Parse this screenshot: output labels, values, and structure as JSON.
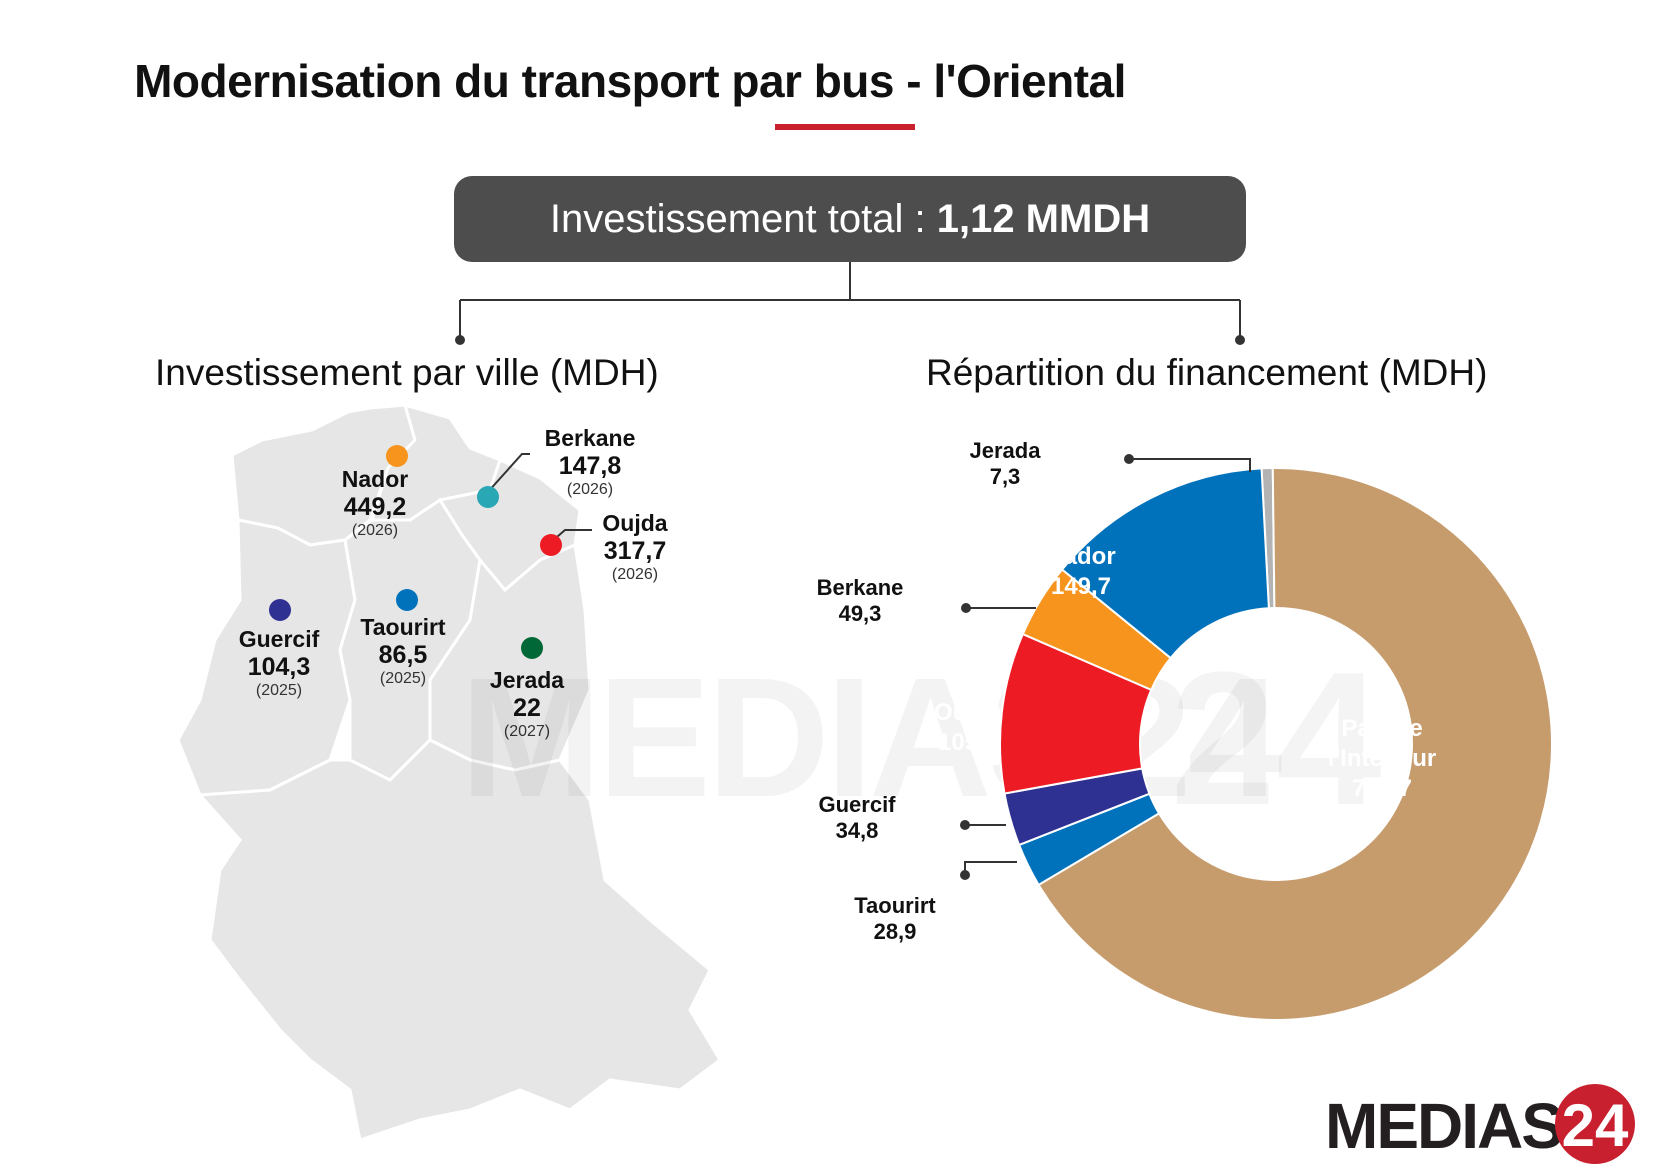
{
  "title": "Modernisation du transport par bus - l'Oriental",
  "total": {
    "label": "Investissement total : ",
    "value": "1,12 MMDH"
  },
  "map_section": {
    "title": "Investissement par ville",
    "unit": " (MDH)",
    "cities": [
      {
        "key": "nador",
        "name": "Nador",
        "value": "449,2",
        "year": "(2026)",
        "color": "#F7941D"
      },
      {
        "key": "berkane",
        "name": "Berkane",
        "value": "147,8",
        "year": "(2026)",
        "color": "#2AA7B5"
      },
      {
        "key": "oujda",
        "name": "Oujda",
        "value": "317,7",
        "year": "(2026)",
        "color": "#ED1C24"
      },
      {
        "key": "guercif",
        "name": "Guercif",
        "value": "104,3",
        "year": "(2025)",
        "color": "#2E3192"
      },
      {
        "key": "taourirt",
        "name": "Taourirt",
        "value": "86,5",
        "year": "(2025)",
        "color": "#0072BC"
      },
      {
        "key": "jerada",
        "name": "Jerada",
        "value": "22",
        "year": "(2027)",
        "color": "#006837"
      }
    ]
  },
  "donut_section": {
    "title": "Répartition du financement",
    "unit": " (MDH)"
  },
  "chart_data": [
    {
      "type": "bar",
      "title": "Investissement par ville (MDH)",
      "categories": [
        "Nador",
        "Berkane",
        "Oujda",
        "Guercif",
        "Taourirt",
        "Jerada"
      ],
      "values": [
        449.2,
        147.8,
        317.7,
        104.3,
        86.5,
        22
      ],
      "years": [
        "2026",
        "2026",
        "2026",
        "2025",
        "2025",
        "2027"
      ]
    },
    {
      "type": "pie",
      "title": "Répartition du financement (MDH)",
      "slices": [
        {
          "label": "Jerada",
          "name_lines": [
            "Jerada"
          ],
          "display": "7,3",
          "value": 7.3,
          "color": "#B3B3B3",
          "label_pos": "outside"
        },
        {
          "label": "Part de l'Intérieur",
          "name_lines": [
            "Part de",
            "l'Intérieur"
          ],
          "display": "751,7",
          "value": 751.7,
          "color": "#C69C6D",
          "label_pos": "inside"
        },
        {
          "label": "Taourirt",
          "name_lines": [
            "Taourirt"
          ],
          "display": "28,9",
          "value": 28.9,
          "color": "#0072BC",
          "label_pos": "outside"
        },
        {
          "label": "Guercif",
          "name_lines": [
            "Guercif"
          ],
          "display": "34,8",
          "value": 34.8,
          "color": "#2E3192",
          "label_pos": "outside"
        },
        {
          "label": "Oujda",
          "name_lines": [
            "Oujda"
          ],
          "display": "105,9",
          "value": 105.9,
          "color": "#ED1C24",
          "label_pos": "inside"
        },
        {
          "label": "Berkane",
          "name_lines": [
            "Berkane"
          ],
          "display": "49,3",
          "value": 49.3,
          "color": "#F7941D",
          "label_pos": "outside"
        },
        {
          "label": "Nador",
          "name_lines": [
            "Nador"
          ],
          "display": "149,7",
          "value": 149.7,
          "color": "#0072BC",
          "label_pos": "inside"
        }
      ]
    }
  ],
  "watermark": "MEDIAS24",
  "logo": {
    "text": "MEDIAS",
    "number": "24"
  },
  "colors": {
    "accent": "#C8202F",
    "box": "#4D4D4D",
    "map": "#E6E6E6",
    "connector": "#333333"
  }
}
